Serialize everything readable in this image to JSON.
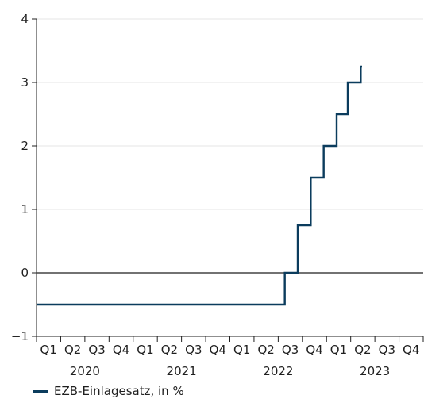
{
  "chart_data": {
    "type": "line",
    "title": "",
    "xlabel": "",
    "ylabel": "",
    "ylim": [
      -1,
      4
    ],
    "yticks": [
      -1,
      0,
      1,
      2,
      3,
      4
    ],
    "ytick_labels": [
      "−1",
      "0",
      "1",
      "2",
      "3",
      "4"
    ],
    "grid": true,
    "legend_position": "bottom-left",
    "colors": {
      "series": "#0b3c5d",
      "grid": "#e6e6e6",
      "axis": "#1f1f1f"
    },
    "x_quarters": [
      "Q1",
      "Q2",
      "Q3",
      "Q4",
      "Q1",
      "Q2",
      "Q3",
      "Q4",
      "Q1",
      "Q2",
      "Q3",
      "Q4",
      "Q1",
      "Q2",
      "Q3",
      "Q4"
    ],
    "x_years": [
      {
        "label": "2020",
        "start_quarter": 0,
        "end_quarter": 3
      },
      {
        "label": "2021",
        "start_quarter": 4,
        "end_quarter": 7
      },
      {
        "label": "2022",
        "start_quarter": 8,
        "end_quarter": 11
      },
      {
        "label": "2023",
        "start_quarter": 12,
        "end_quarter": 15
      }
    ],
    "series": [
      {
        "name": "EZB-Einlagesatz, in %",
        "x": [
          "2020-01-01",
          "2022-07-27",
          "2022-09-14",
          "2022-11-02",
          "2022-12-21",
          "2023-02-08",
          "2023-03-22",
          "2023-05-10",
          "2023-05-15"
        ],
        "values": [
          -0.5,
          0,
          0.75,
          1.5,
          2,
          2.5,
          3,
          3.25,
          3.25
        ]
      }
    ]
  }
}
